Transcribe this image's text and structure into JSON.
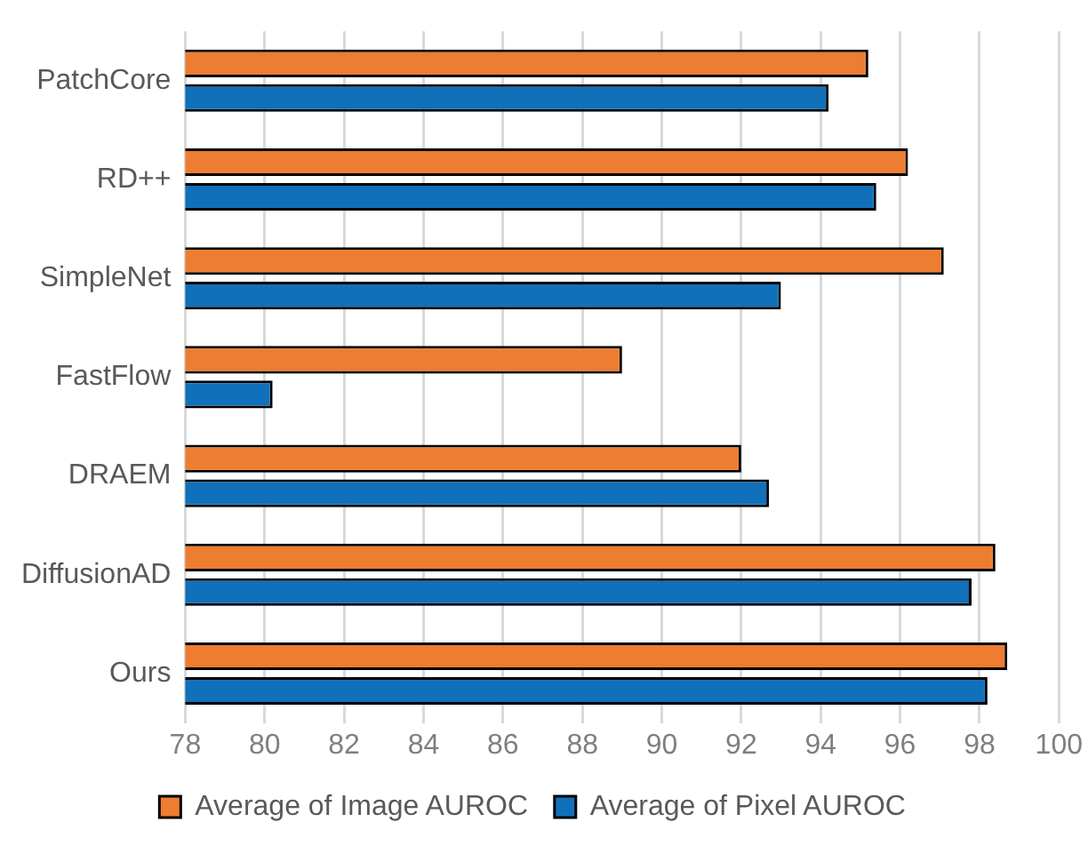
{
  "chart_data": {
    "type": "bar",
    "orientation": "horizontal",
    "categories": [
      "PatchCore",
      "RD++",
      "SimpleNet",
      "FastFlow",
      "DRAEM",
      "DiffusionAD",
      "Ours"
    ],
    "series": [
      {
        "name": "Average of Image AUROC",
        "color": "#ed7d31",
        "values": [
          95.2,
          96.2,
          97.1,
          89.0,
          92.0,
          98.4,
          98.7
        ]
      },
      {
        "name": "Average of Pixel AUROC",
        "color": "#1170ba",
        "values": [
          94.2,
          95.4,
          93.0,
          80.2,
          92.7,
          97.8,
          98.2
        ]
      }
    ],
    "xlim": [
      78,
      100
    ],
    "xticks": [
      78,
      80,
      82,
      84,
      86,
      88,
      90,
      92,
      94,
      96,
      98,
      100
    ],
    "grid": "x",
    "legend": "bottom"
  }
}
